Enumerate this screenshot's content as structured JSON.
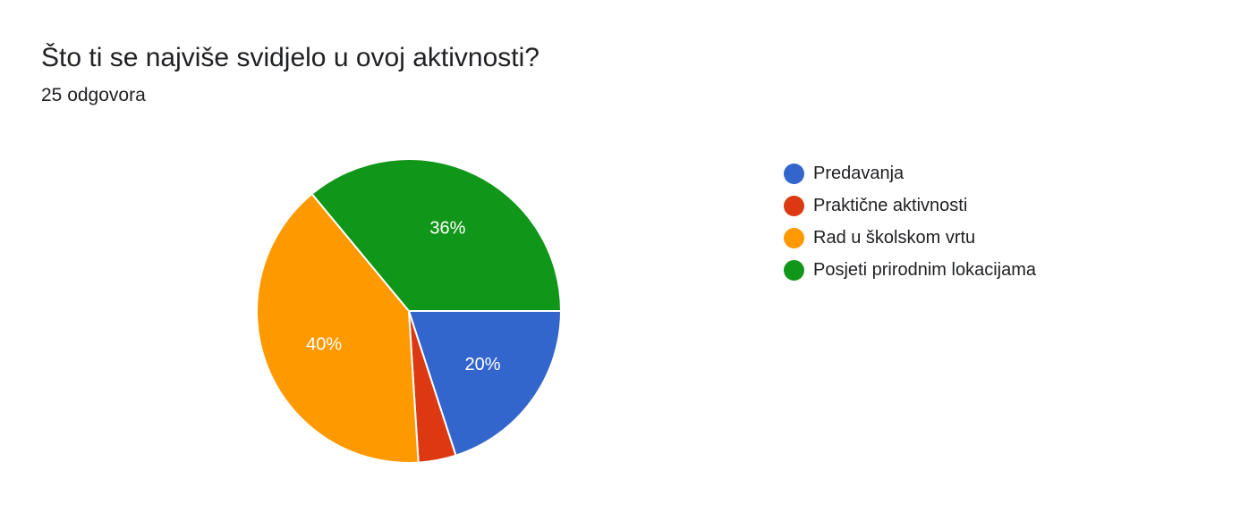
{
  "header": {
    "question": "Što ti se najviše svidjelo u ovoj aktivnosti?",
    "responses": "25 odgovora"
  },
  "chart_data": {
    "type": "pie",
    "start": "3 o'clock, clockwise",
    "slices": [
      {
        "label": "Predavanja",
        "value": 20,
        "display": "20%",
        "color": "#3366cc"
      },
      {
        "label": "Praktične aktivnosti",
        "value": 4,
        "display": "",
        "color": "#dc3912"
      },
      {
        "label": "Rad u školskom vrtu",
        "value": 40,
        "display": "40%",
        "color": "#ff9900"
      },
      {
        "label": "Posjeti prirodnim lokacijama",
        "value": 36,
        "display": "36%",
        "color": "#109618"
      }
    ],
    "legend": "right"
  }
}
